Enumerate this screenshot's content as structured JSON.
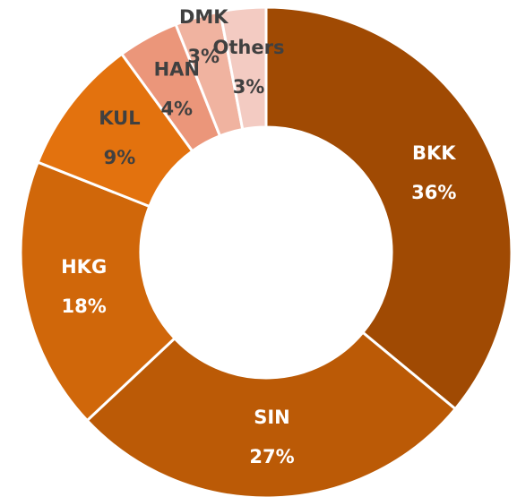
{
  "chart_data": {
    "type": "donut",
    "categories": [
      "BKK",
      "SIN",
      "HKG",
      "KUL",
      "HAN",
      "DMK",
      "Others"
    ],
    "values": [
      36,
      27,
      18,
      9,
      4,
      3,
      3
    ],
    "value_labels": [
      "36%",
      "27%",
      "18%",
      "9%",
      "4%",
      "3%",
      "3%"
    ],
    "colors": [
      "#a04a03",
      "#bb5a06",
      "#d0670a",
      "#e3720e",
      "#eb967a",
      "#f0b3a0",
      "#f3cbc2"
    ],
    "label_colors": [
      "#ffffff",
      "#ffffff",
      "#ffffff",
      "#404040",
      "#404040",
      "#404040",
      "#404040"
    ]
  }
}
